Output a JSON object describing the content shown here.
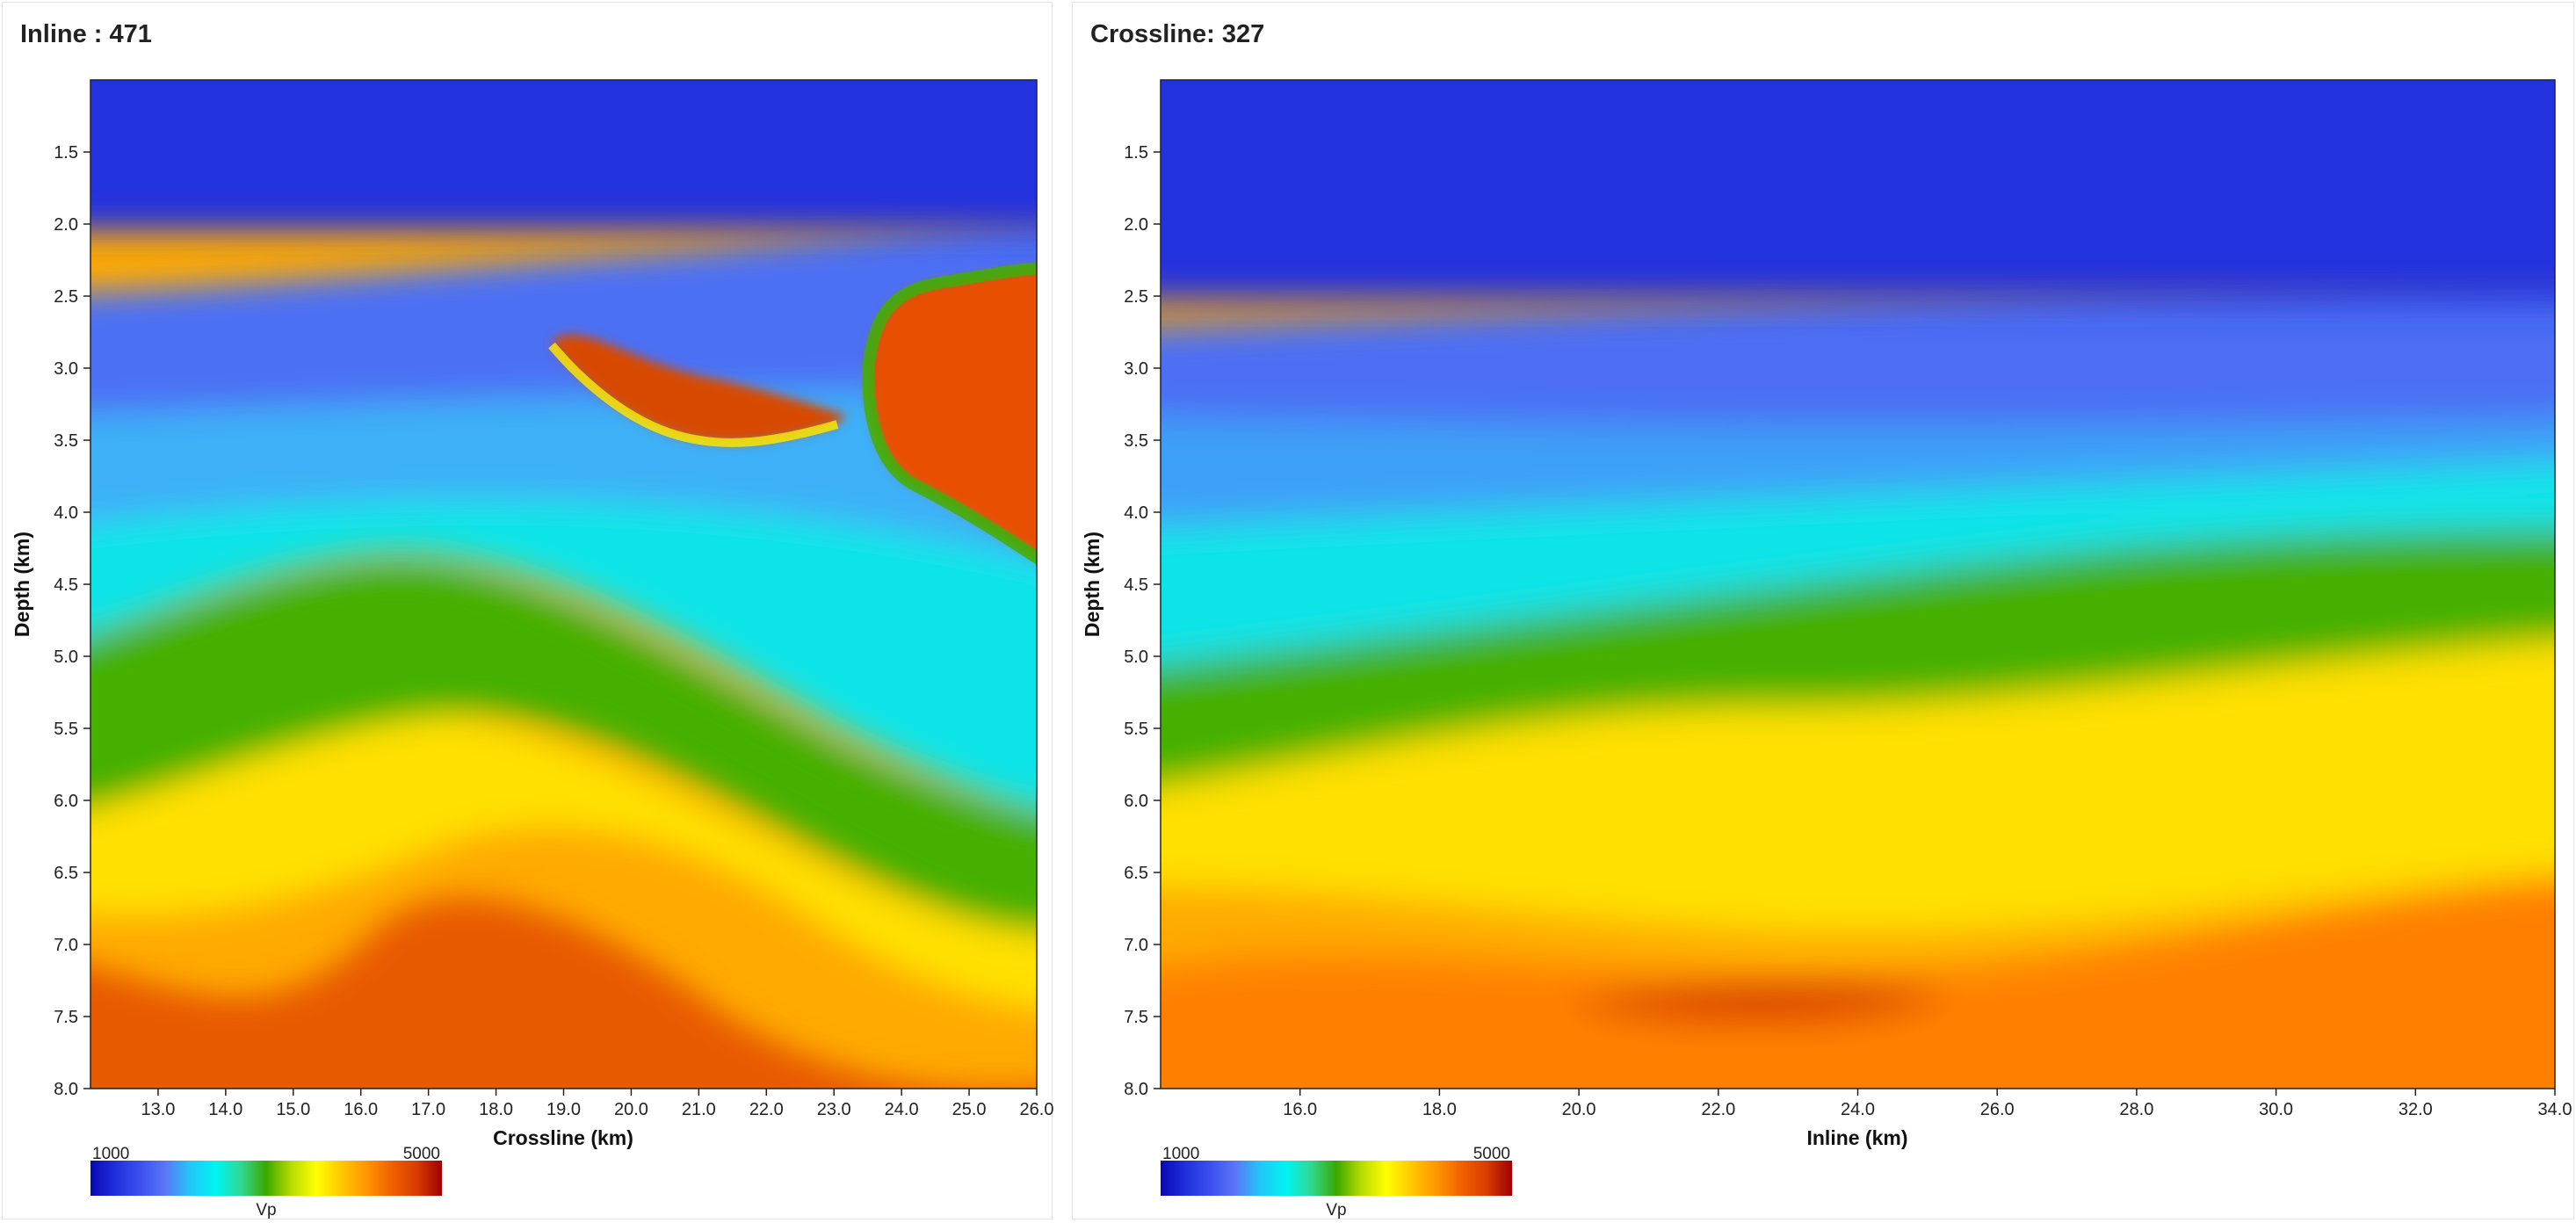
{
  "colors": {
    "colormap": [
      "#0808b4",
      "#2030dd",
      "#3c50f0",
      "#5a78f8",
      "#20c8f8",
      "#00f4f4",
      "#30d890",
      "#3aa800",
      "#b8dc00",
      "#ffff00",
      "#ffc800",
      "#ff9600",
      "#f06000",
      "#d83c00",
      "#a00000"
    ]
  },
  "panels": [
    {
      "title": "Inline : 471",
      "chart_data": {
        "type": "heatmap",
        "xlabel": "Crossline (km)",
        "ylabel": "Depth (km)",
        "xlim": [
          12.0,
          26.0
        ],
        "ylim": [
          1.0,
          8.0
        ],
        "xticks": [
          "13.0",
          "14.0",
          "15.0",
          "16.0",
          "17.0",
          "18.0",
          "19.0",
          "20.0",
          "21.0",
          "22.0",
          "23.0",
          "24.0",
          "25.0",
          "26.0"
        ],
        "yticks": [
          "1.5",
          "2.0",
          "2.5",
          "3.0",
          "3.5",
          "4.0",
          "4.5",
          "5.0",
          "5.5",
          "6.0",
          "6.5",
          "7.0",
          "7.5",
          "8.0"
        ],
        "colorbar": {
          "label": "Vp",
          "min": "1000",
          "max": "5000"
        }
      }
    },
    {
      "title": "Crossline: 327",
      "chart_data": {
        "type": "heatmap",
        "xlabel": "Inline (km)",
        "ylabel": "Depth (km)",
        "xlim": [
          14.0,
          34.0
        ],
        "ylim": [
          1.0,
          8.0
        ],
        "xticks": [
          "16.0",
          "18.0",
          "20.0",
          "22.0",
          "24.0",
          "26.0",
          "28.0",
          "30.0",
          "32.0",
          "34.0"
        ],
        "yticks": [
          "1.5",
          "2.0",
          "2.5",
          "3.0",
          "3.5",
          "4.0",
          "4.5",
          "5.0",
          "5.5",
          "6.0",
          "6.5",
          "7.0",
          "7.5",
          "8.0"
        ],
        "colorbar": {
          "label": "Vp",
          "min": "1000",
          "max": "5000"
        }
      }
    }
  ]
}
